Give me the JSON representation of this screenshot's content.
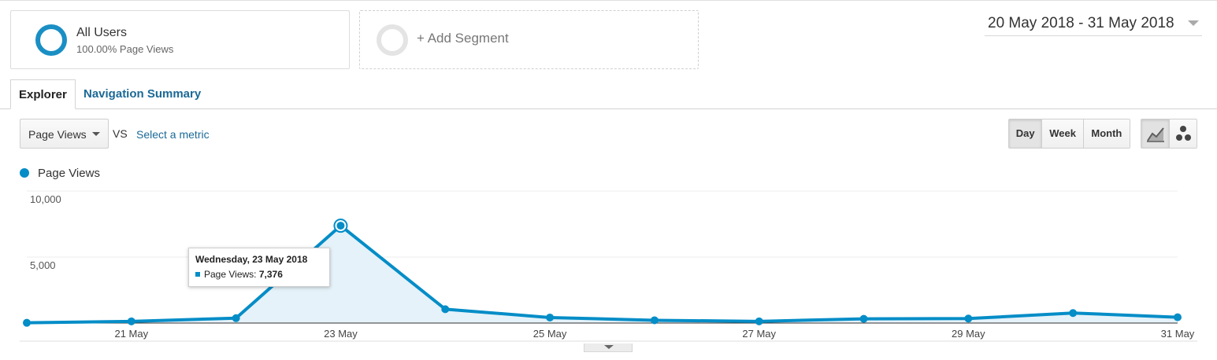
{
  "segments": [
    {
      "title": "All Users",
      "subtitle": "100.00% Page Views"
    },
    {
      "title": "+ Add Segment"
    }
  ],
  "date_range": "20 May 2018 - 31 May 2018",
  "tabs": [
    {
      "label": "Explorer",
      "active": true
    },
    {
      "label": "Navigation Summary",
      "active": false
    }
  ],
  "metric_selector": {
    "value": "Page Views",
    "vs": "VS",
    "select_metric": "Select a metric"
  },
  "period_buttons": [
    {
      "label": "Day",
      "active": true
    },
    {
      "label": "Week",
      "active": false
    },
    {
      "label": "Month",
      "active": false
    }
  ],
  "chart_type_buttons": [
    {
      "icon": "line-chart-icon",
      "active": true
    },
    {
      "icon": "motion-chart-icon",
      "active": false
    }
  ],
  "colors": {
    "series": "#058dc7",
    "area": "#e5f2f9",
    "link": "#1b6996"
  },
  "tooltip": {
    "date": "Wednesday, 23 May 2018",
    "metric": "Page Views:",
    "value": "7,376"
  },
  "chart_data": {
    "type": "line",
    "series": [
      {
        "name": "Page Views",
        "x": [
          "20 May",
          "21 May",
          "22 May",
          "23 May",
          "24 May",
          "25 May",
          "26 May",
          "27 May",
          "28 May",
          "29 May",
          "30 May",
          "31 May"
        ],
        "values": [
          20,
          130,
          370,
          7376,
          1050,
          420,
          210,
          130,
          320,
          340,
          760,
          440
        ]
      }
    ],
    "x_tick_labels": [
      "21 May",
      "23 May",
      "25 May",
      "27 May",
      "29 May",
      "31 May"
    ],
    "y_tick_labels": [
      "10,000",
      "5,000"
    ],
    "ylim": [
      0,
      10000
    ],
    "grid": true,
    "highlighted_point": "23 May",
    "legend": "top-left"
  }
}
